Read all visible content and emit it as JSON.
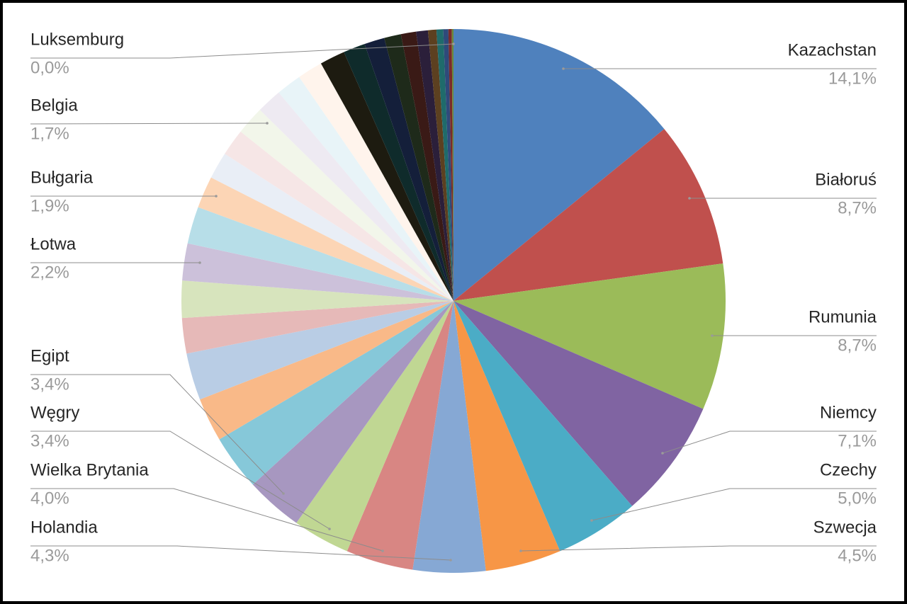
{
  "chart_data": {
    "type": "pie",
    "categories": [
      "Kazachstan",
      "Białoruś",
      "Rumunia",
      "Niemcy",
      "Czechy",
      "Szwecja",
      "Holandia",
      "Wielka Brytania",
      "Węgry",
      "Egipt",
      null,
      null,
      null,
      null,
      null,
      "Łotwa",
      null,
      "Bułgaria",
      null,
      null,
      "Belgia",
      null,
      null,
      null,
      null,
      null,
      null,
      null,
      null,
      null,
      null,
      null,
      null,
      null,
      null,
      "Luksemburg"
    ],
    "values": [
      14.1,
      8.7,
      8.7,
      7.1,
      5.0,
      4.5,
      4.3,
      4.0,
      3.4,
      3.4,
      3.3,
      2.6,
      2.8,
      2.1,
      2.2,
      2.2,
      2.2,
      1.9,
      1.6,
      1.6,
      1.7,
      1.5,
      1.5,
      1.5,
      1.5,
      1.3,
      1.2,
      1.0,
      0.9,
      0.7,
      0.5,
      0.4,
      0.3,
      0.2,
      0.1,
      0.0
    ],
    "value_labels": [
      "14,1%",
      "8,7%",
      "8,7%",
      "7,1%",
      "5,0%",
      "4,5%",
      "4,3%",
      "4,0%",
      "3,4%",
      "3,4%",
      null,
      null,
      null,
      null,
      null,
      "2,2%",
      null,
      "1,9%",
      null,
      null,
      "1,7%",
      null,
      null,
      null,
      null,
      null,
      null,
      null,
      null,
      null,
      null,
      null,
      null,
      null,
      null,
      "0,0%"
    ],
    "colors": [
      "#4f81bd",
      "#c0504d",
      "#9bbb59",
      "#8064a2",
      "#4bacc6",
      "#f79646",
      "#86a8d4",
      "#d88683",
      "#c0d793",
      "#a797c0",
      "#86c8d9",
      "#f9b988",
      "#b9cde5",
      "#e6b9b8",
      "#d7e4bd",
      "#ccc1da",
      "#b7dee8",
      "#fcd5b5",
      "#e9eef6",
      "#f6e6e6",
      "#f2f6ea",
      "#eeeaf2",
      "#e8f4f8",
      "#fff4ec",
      "#1d1b10",
      "#0f2b2b",
      "#141f3a",
      "#1e2a1a",
      "#3a1a16",
      "#2b1f3a",
      "#5c4020",
      "#1f6b6b",
      "#2f4a7a",
      "#7a2a2a",
      "#6a8a3a",
      "#8a7aaa"
    ]
  }
}
